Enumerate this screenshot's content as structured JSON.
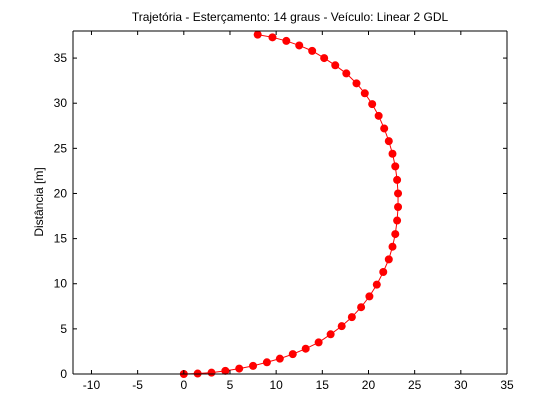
{
  "chart_data": {
    "type": "line",
    "title": "Trajetória - Esterçamento: 14 graus - Veículo: Linear 2 GDL",
    "xlabel": "",
    "ylabel": "Distância [m]",
    "xlim": [
      -12,
      35
    ],
    "ylim": [
      0,
      38
    ],
    "xticks": [
      -10,
      -5,
      0,
      5,
      10,
      15,
      20,
      25,
      30,
      35
    ],
    "yticks": [
      0,
      5,
      10,
      15,
      20,
      25,
      30,
      35
    ],
    "grid": false,
    "series": [
      {
        "color": "#ff0000",
        "marker": "circle",
        "points": [
          [
            0.0,
            0.0
          ],
          [
            1.5,
            0.05
          ],
          [
            3.0,
            0.15
          ],
          [
            4.5,
            0.35
          ],
          [
            6.0,
            0.6
          ],
          [
            7.5,
            0.9
          ],
          [
            9.0,
            1.3
          ],
          [
            10.4,
            1.7
          ],
          [
            11.8,
            2.2
          ],
          [
            13.2,
            2.8
          ],
          [
            14.6,
            3.5
          ],
          [
            15.9,
            4.4
          ],
          [
            17.1,
            5.3
          ],
          [
            18.2,
            6.3
          ],
          [
            19.2,
            7.4
          ],
          [
            20.1,
            8.6
          ],
          [
            20.9,
            9.9
          ],
          [
            21.6,
            11.3
          ],
          [
            22.2,
            12.7
          ],
          [
            22.6,
            14.1
          ],
          [
            22.9,
            15.5
          ],
          [
            23.1,
            17.0
          ],
          [
            23.2,
            18.5
          ],
          [
            23.2,
            20.0
          ],
          [
            23.1,
            21.5
          ],
          [
            22.9,
            23.0
          ],
          [
            22.6,
            24.4
          ],
          [
            22.2,
            25.8
          ],
          [
            21.7,
            27.2
          ],
          [
            21.1,
            28.6
          ],
          [
            20.4,
            29.9
          ],
          [
            19.6,
            31.1
          ],
          [
            18.7,
            32.2
          ],
          [
            17.6,
            33.3
          ],
          [
            16.4,
            34.2
          ],
          [
            15.2,
            35.0
          ],
          [
            13.9,
            35.8
          ],
          [
            12.5,
            36.4
          ],
          [
            11.1,
            36.9
          ],
          [
            9.6,
            37.3
          ],
          [
            8.0,
            37.6
          ]
        ]
      }
    ]
  }
}
